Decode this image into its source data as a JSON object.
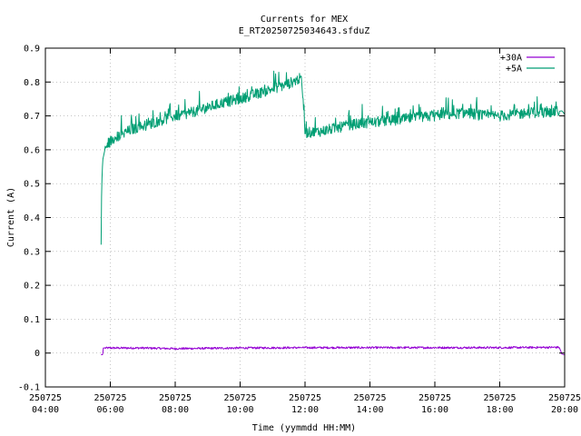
{
  "chart_data": {
    "type": "line",
    "title": "Currents for MEX",
    "subtitle": "E_RT2025072503464З.sfduZ",
    "xlabel": "Time (yymmdd HH:MM)",
    "ylabel": "Current (A)",
    "ylim": [
      -0.1,
      0.9
    ],
    "yticks": [
      "-0.1",
      "0",
      "0.1",
      "0.2",
      "0.3",
      "0.4",
      "0.5",
      "0.6",
      "0.7",
      "0.8",
      "0.9"
    ],
    "xlim": [
      "2025-07-25 04:00",
      "2025-07-25 20:00"
    ],
    "xticks": [
      {
        "date": "250725",
        "time": "04:00"
      },
      {
        "date": "250725",
        "time": "06:00"
      },
      {
        "date": "250725",
        "time": "08:00"
      },
      {
        "date": "250725",
        "time": "10:00"
      },
      {
        "date": "250725",
        "time": "12:00"
      },
      {
        "date": "250725",
        "time": "14:00"
      },
      {
        "date": "250725",
        "time": "16:00"
      },
      {
        "date": "250725",
        "time": "18:00"
      },
      {
        "date": "250725",
        "time": "20:00"
      }
    ],
    "grid": true,
    "legend_position": "top-right",
    "series": [
      {
        "name": "+30A",
        "color": "#9400d3",
        "x": [
          "05:43",
          "05:46",
          "05:47",
          "07:00",
          "08:00",
          "10:00",
          "12:00",
          "14:00",
          "16:00",
          "18:00",
          "19:50",
          "19:55",
          "20:00"
        ],
        "y": [
          -0.005,
          -0.005,
          0.015,
          0.015,
          0.013,
          0.015,
          0.016,
          0.016,
          0.016,
          0.016,
          0.017,
          -0.003,
          -0.005
        ]
      },
      {
        "name": "+5A",
        "color": "#009e73",
        "x": [
          "05:43",
          "05:44",
          "05:46",
          "05:50",
          "06:00",
          "06:20",
          "06:40",
          "07:00",
          "07:30",
          "08:00",
          "08:30",
          "09:00",
          "09:30",
          "10:00",
          "10:30",
          "11:00",
          "11:30",
          "11:50",
          "11:53",
          "12:00",
          "12:30",
          "13:00",
          "13:30",
          "14:00",
          "14:30",
          "15:00",
          "15:30",
          "16:00",
          "16:30",
          "17:00",
          "17:30",
          "18:00",
          "18:30",
          "19:00",
          "19:30",
          "19:55",
          "20:00"
        ],
        "y": [
          0.32,
          0.49,
          0.57,
          0.6,
          0.625,
          0.645,
          0.66,
          0.67,
          0.685,
          0.7,
          0.71,
          0.725,
          0.74,
          0.75,
          0.765,
          0.78,
          0.795,
          0.81,
          0.82,
          0.65,
          0.655,
          0.665,
          0.675,
          0.68,
          0.685,
          0.69,
          0.695,
          0.7,
          0.705,
          0.71,
          0.7,
          0.7,
          0.705,
          0.71,
          0.71,
          0.715,
          0.705
        ]
      }
    ]
  }
}
